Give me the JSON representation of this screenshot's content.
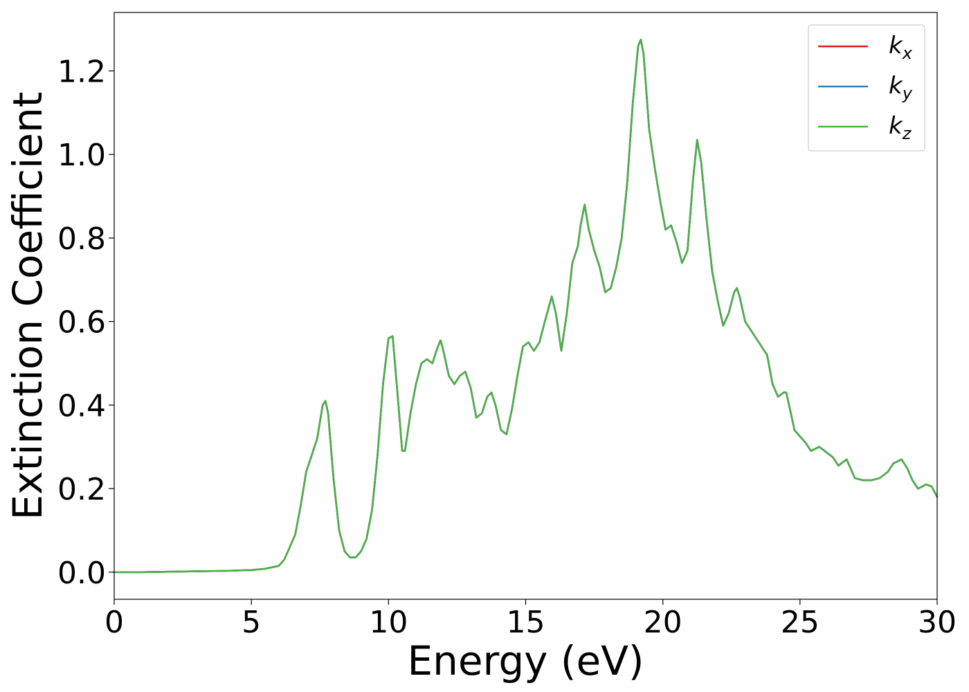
{
  "chart_data": {
    "type": "line",
    "xlabel": "Energy (eV)",
    "ylabel": "Extinction Coefficient",
    "xlim": [
      0,
      30
    ],
    "ylim": [
      -0.065,
      1.34
    ],
    "xticks": [
      0,
      5,
      10,
      15,
      20,
      25,
      30
    ],
    "xtick_labels": [
      "0",
      "5",
      "10",
      "15",
      "20",
      "25",
      "30"
    ],
    "yticks": [
      0.0,
      0.2,
      0.4,
      0.6,
      0.8,
      1.0,
      1.2
    ],
    "ytick_labels": [
      "0.0",
      "0.2",
      "0.4",
      "0.6",
      "0.8",
      "1.0",
      "1.2"
    ],
    "grid": false,
    "legend_position": "top-right",
    "x": [
      0,
      1,
      2,
      3,
      4,
      5,
      5.5,
      6,
      6.2,
      6.4,
      6.6,
      6.8,
      7.0,
      7.2,
      7.4,
      7.6,
      7.7,
      7.8,
      8.0,
      8.2,
      8.4,
      8.6,
      8.8,
      9.0,
      9.2,
      9.4,
      9.6,
      9.8,
      10.0,
      10.15,
      10.3,
      10.5,
      10.6,
      10.8,
      11.0,
      11.2,
      11.4,
      11.6,
      11.8,
      11.9,
      12.0,
      12.2,
      12.4,
      12.6,
      12.8,
      13.0,
      13.2,
      13.4,
      13.6,
      13.75,
      13.9,
      14.1,
      14.3,
      14.5,
      14.7,
      14.9,
      15.1,
      15.3,
      15.5,
      15.7,
      15.95,
      16.1,
      16.3,
      16.5,
      16.7,
      16.9,
      17.0,
      17.15,
      17.3,
      17.5,
      17.7,
      17.9,
      18.1,
      18.3,
      18.5,
      18.7,
      18.9,
      19.1,
      19.2,
      19.3,
      19.5,
      19.7,
      19.9,
      20.1,
      20.3,
      20.5,
      20.7,
      20.9,
      21.1,
      21.25,
      21.4,
      21.6,
      21.8,
      22.0,
      22.2,
      22.4,
      22.6,
      22.7,
      22.8,
      23.0,
      23.2,
      23.4,
      23.6,
      23.8,
      24.0,
      24.2,
      24.4,
      24.5,
      24.6,
      24.8,
      25.0,
      25.2,
      25.4,
      25.7,
      26.0,
      26.2,
      26.4,
      26.7,
      27.0,
      27.3,
      27.6,
      27.9,
      28.2,
      28.4,
      28.7,
      28.9,
      29.1,
      29.3,
      29.6,
      29.8,
      30.0
    ],
    "series": [
      {
        "name": "k_x",
        "color": "#e41a1c",
        "values": [
          0.0,
          0.0,
          0.001,
          0.002,
          0.003,
          0.005,
          0.008,
          0.015,
          0.03,
          0.06,
          0.09,
          0.16,
          0.24,
          0.28,
          0.32,
          0.4,
          0.41,
          0.38,
          0.22,
          0.1,
          0.05,
          0.035,
          0.035,
          0.05,
          0.08,
          0.15,
          0.28,
          0.45,
          0.56,
          0.565,
          0.45,
          0.29,
          0.29,
          0.38,
          0.45,
          0.5,
          0.51,
          0.5,
          0.54,
          0.555,
          0.53,
          0.47,
          0.45,
          0.47,
          0.48,
          0.44,
          0.37,
          0.38,
          0.42,
          0.43,
          0.4,
          0.34,
          0.33,
          0.39,
          0.47,
          0.54,
          0.55,
          0.53,
          0.55,
          0.6,
          0.66,
          0.62,
          0.53,
          0.62,
          0.74,
          0.78,
          0.83,
          0.88,
          0.82,
          0.77,
          0.73,
          0.67,
          0.68,
          0.73,
          0.8,
          0.93,
          1.12,
          1.26,
          1.275,
          1.24,
          1.06,
          0.97,
          0.89,
          0.82,
          0.83,
          0.79,
          0.74,
          0.77,
          0.94,
          1.035,
          0.98,
          0.84,
          0.72,
          0.65,
          0.59,
          0.62,
          0.67,
          0.68,
          0.66,
          0.6,
          0.58,
          0.56,
          0.54,
          0.52,
          0.45,
          0.42,
          0.43,
          0.43,
          0.4,
          0.34,
          0.325,
          0.31,
          0.29,
          0.3,
          0.285,
          0.275,
          0.255,
          0.27,
          0.225,
          0.22,
          0.22,
          0.225,
          0.24,
          0.26,
          0.27,
          0.25,
          0.22,
          0.2,
          0.21,
          0.205,
          0.18
        ]
      },
      {
        "name": "k_y",
        "color": "#377eb8",
        "values": [
          0.0,
          0.0,
          0.001,
          0.002,
          0.003,
          0.005,
          0.008,
          0.015,
          0.03,
          0.06,
          0.09,
          0.16,
          0.24,
          0.28,
          0.32,
          0.4,
          0.41,
          0.38,
          0.22,
          0.1,
          0.05,
          0.035,
          0.035,
          0.05,
          0.08,
          0.15,
          0.28,
          0.45,
          0.56,
          0.565,
          0.45,
          0.29,
          0.29,
          0.38,
          0.45,
          0.5,
          0.51,
          0.5,
          0.54,
          0.555,
          0.53,
          0.47,
          0.45,
          0.47,
          0.48,
          0.44,
          0.37,
          0.38,
          0.42,
          0.43,
          0.4,
          0.34,
          0.33,
          0.39,
          0.47,
          0.54,
          0.55,
          0.53,
          0.55,
          0.6,
          0.66,
          0.62,
          0.53,
          0.62,
          0.74,
          0.78,
          0.83,
          0.88,
          0.82,
          0.77,
          0.73,
          0.67,
          0.68,
          0.73,
          0.8,
          0.93,
          1.12,
          1.26,
          1.275,
          1.24,
          1.06,
          0.97,
          0.89,
          0.82,
          0.83,
          0.79,
          0.74,
          0.77,
          0.94,
          1.035,
          0.98,
          0.84,
          0.72,
          0.65,
          0.59,
          0.62,
          0.67,
          0.68,
          0.66,
          0.6,
          0.58,
          0.56,
          0.54,
          0.52,
          0.45,
          0.42,
          0.43,
          0.43,
          0.4,
          0.34,
          0.325,
          0.31,
          0.29,
          0.3,
          0.285,
          0.275,
          0.255,
          0.27,
          0.225,
          0.22,
          0.22,
          0.225,
          0.24,
          0.26,
          0.27,
          0.25,
          0.22,
          0.2,
          0.21,
          0.205,
          0.18
        ]
      },
      {
        "name": "k_z",
        "color": "#4daf4a",
        "values": [
          0.0,
          0.0,
          0.001,
          0.002,
          0.003,
          0.005,
          0.008,
          0.015,
          0.03,
          0.06,
          0.09,
          0.16,
          0.24,
          0.28,
          0.32,
          0.4,
          0.41,
          0.38,
          0.22,
          0.1,
          0.05,
          0.035,
          0.035,
          0.05,
          0.08,
          0.15,
          0.28,
          0.45,
          0.56,
          0.565,
          0.45,
          0.29,
          0.29,
          0.38,
          0.45,
          0.5,
          0.51,
          0.5,
          0.54,
          0.555,
          0.53,
          0.47,
          0.45,
          0.47,
          0.48,
          0.44,
          0.37,
          0.38,
          0.42,
          0.43,
          0.4,
          0.34,
          0.33,
          0.39,
          0.47,
          0.54,
          0.55,
          0.53,
          0.55,
          0.6,
          0.66,
          0.62,
          0.53,
          0.62,
          0.74,
          0.78,
          0.83,
          0.88,
          0.82,
          0.77,
          0.73,
          0.67,
          0.68,
          0.73,
          0.8,
          0.93,
          1.12,
          1.26,
          1.275,
          1.24,
          1.06,
          0.97,
          0.89,
          0.82,
          0.83,
          0.79,
          0.74,
          0.77,
          0.94,
          1.035,
          0.98,
          0.84,
          0.72,
          0.65,
          0.59,
          0.62,
          0.67,
          0.68,
          0.66,
          0.6,
          0.58,
          0.56,
          0.54,
          0.52,
          0.45,
          0.42,
          0.43,
          0.43,
          0.4,
          0.34,
          0.325,
          0.31,
          0.29,
          0.3,
          0.285,
          0.275,
          0.255,
          0.27,
          0.225,
          0.22,
          0.22,
          0.225,
          0.24,
          0.26,
          0.27,
          0.25,
          0.22,
          0.2,
          0.21,
          0.205,
          0.18
        ]
      }
    ],
    "legend": [
      {
        "base": "k",
        "sub": "x"
      },
      {
        "base": "k",
        "sub": "y"
      },
      {
        "base": "k",
        "sub": "z"
      }
    ]
  }
}
